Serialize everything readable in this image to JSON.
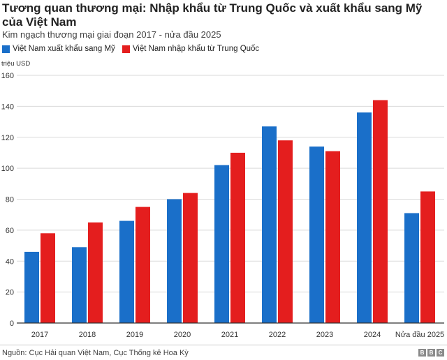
{
  "colors": {
    "export": "#1a6fc9",
    "import": "#e41e1e",
    "grid": "#d9d9d9",
    "axis": "#333333"
  },
  "footer": {
    "source": "Nguồn: Cục Hải quan Việt Nam, Cục Thống kê Hoa Kỳ",
    "logo_letters": [
      "B",
      "B",
      "C"
    ]
  },
  "chart_data": {
    "type": "bar",
    "title": "Tương quan thương mại: Nhập khẩu từ Trung Quốc và xuất khẩu sang Mỹ của Việt Nam",
    "subtitle": "Kim ngạch thương mại giai đoạn 2017 - nửa đầu 2025",
    "ylabel": "triệu USD",
    "xlabel": "",
    "ylim": [
      0,
      160
    ],
    "yticks": [
      0,
      20,
      40,
      60,
      80,
      100,
      120,
      140,
      160
    ],
    "grid": true,
    "legend_position": "top-left",
    "categories": [
      "2017",
      "2018",
      "2019",
      "2020",
      "2021",
      "2022",
      "2023",
      "2024",
      "Nửa đầu 2025"
    ],
    "series": [
      {
        "name": "Việt Nam xuất khẩu sang Mỹ",
        "color": "#1a6fc9",
        "values": [
          46,
          49,
          66,
          80,
          102,
          127,
          114,
          136,
          71
        ]
      },
      {
        "name": "Việt Nam nhập khẩu từ Trung Quốc",
        "color": "#e41e1e",
        "values": [
          58,
          65,
          75,
          84,
          110,
          118,
          111,
          144,
          85
        ]
      }
    ]
  }
}
